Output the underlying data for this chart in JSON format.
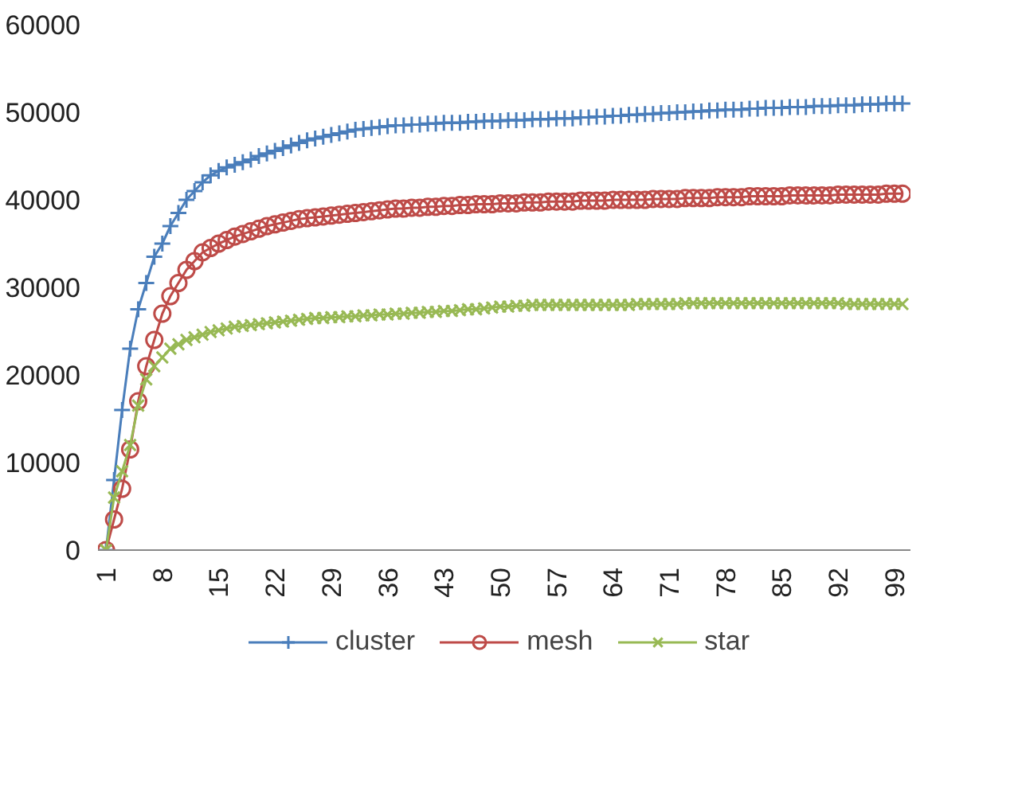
{
  "chart_data": {
    "type": "line",
    "x": [
      1,
      2,
      3,
      4,
      5,
      6,
      7,
      8,
      9,
      10,
      11,
      12,
      13,
      14,
      15,
      16,
      17,
      18,
      19,
      20,
      21,
      22,
      23,
      24,
      25,
      26,
      27,
      28,
      29,
      30,
      31,
      32,
      33,
      34,
      35,
      36,
      37,
      38,
      39,
      40,
      41,
      42,
      43,
      44,
      45,
      46,
      47,
      48,
      49,
      50,
      51,
      52,
      53,
      54,
      55,
      56,
      57,
      58,
      59,
      60,
      61,
      62,
      63,
      64,
      65,
      66,
      67,
      68,
      69,
      70,
      71,
      72,
      73,
      74,
      75,
      76,
      77,
      78,
      79,
      80,
      81,
      82,
      83,
      84,
      85,
      86,
      87,
      88,
      89,
      90,
      91,
      92,
      93,
      94,
      95,
      96,
      97,
      98,
      99,
      100
    ],
    "xlim": [
      0,
      101
    ],
    "xticks": [
      1,
      8,
      15,
      22,
      29,
      36,
      43,
      50,
      57,
      64,
      71,
      78,
      85,
      92,
      99
    ],
    "ylim": [
      0,
      60000
    ],
    "yticks": [
      0,
      10000,
      20000,
      30000,
      40000,
      50000,
      60000
    ],
    "grid": false,
    "legend": "bottom",
    "series": [
      {
        "name": "cluster",
        "color": "#4a7ebb",
        "marker": "cross",
        "values": [
          0,
          8000,
          16000,
          23000,
          27500,
          30500,
          33500,
          35000,
          37000,
          38500,
          40000,
          41000,
          42000,
          42800,
          43300,
          43700,
          44000,
          44300,
          44600,
          45000,
          45300,
          45600,
          45900,
          46200,
          46500,
          46800,
          47000,
          47200,
          47400,
          47600,
          47800,
          48000,
          48100,
          48200,
          48300,
          48400,
          48500,
          48500,
          48600,
          48600,
          48700,
          48700,
          48800,
          48800,
          48800,
          48900,
          48900,
          49000,
          49000,
          49000,
          49100,
          49100,
          49100,
          49200,
          49200,
          49200,
          49300,
          49300,
          49300,
          49400,
          49400,
          49500,
          49500,
          49600,
          49600,
          49700,
          49700,
          49800,
          49800,
          49900,
          49900,
          50000,
          50000,
          50100,
          50100,
          50200,
          50200,
          50300,
          50300,
          50300,
          50400,
          50400,
          50500,
          50500,
          50500,
          50600,
          50600,
          50600,
          50700,
          50700,
          50700,
          50800,
          50800,
          50800,
          50900,
          50900,
          50900,
          51000,
          51000,
          51000
        ]
      },
      {
        "name": "mesh",
        "color": "#be4b48",
        "marker": "circle",
        "values": [
          0,
          3500,
          7000,
          11500,
          17000,
          21000,
          24000,
          27000,
          29000,
          30500,
          32000,
          33000,
          34000,
          34500,
          35000,
          35400,
          35800,
          36100,
          36400,
          36700,
          37000,
          37200,
          37400,
          37600,
          37800,
          37900,
          38000,
          38100,
          38200,
          38300,
          38400,
          38500,
          38600,
          38700,
          38800,
          38900,
          39000,
          39000,
          39100,
          39100,
          39200,
          39200,
          39300,
          39300,
          39400,
          39400,
          39500,
          39500,
          39500,
          39600,
          39600,
          39600,
          39700,
          39700,
          39700,
          39800,
          39800,
          39800,
          39800,
          39900,
          39900,
          39900,
          39900,
          40000,
          40000,
          40000,
          40000,
          40000,
          40100,
          40100,
          40100,
          40100,
          40200,
          40200,
          40200,
          40200,
          40300,
          40300,
          40300,
          40300,
          40400,
          40400,
          40400,
          40400,
          40400,
          40500,
          40500,
          40500,
          40500,
          40500,
          40500,
          40600,
          40600,
          40600,
          40600,
          40600,
          40600,
          40700,
          40700,
          40700
        ]
      },
      {
        "name": "star",
        "color": "#98b954",
        "marker": "x",
        "values": [
          0,
          6000,
          9000,
          12000,
          16500,
          19500,
          21000,
          22000,
          23000,
          23500,
          24000,
          24300,
          24600,
          24900,
          25100,
          25300,
          25500,
          25600,
          25700,
          25800,
          25900,
          26000,
          26100,
          26200,
          26300,
          26400,
          26500,
          26500,
          26600,
          26600,
          26700,
          26700,
          26800,
          26800,
          26900,
          26900,
          27000,
          27000,
          27100,
          27100,
          27200,
          27200,
          27300,
          27300,
          27400,
          27500,
          27500,
          27600,
          27700,
          27800,
          27800,
          27900,
          27900,
          28000,
          28000,
          28000,
          28000,
          28000,
          28000,
          28000,
          28000,
          28000,
          28000,
          28000,
          28000,
          28000,
          28100,
          28100,
          28100,
          28100,
          28100,
          28100,
          28200,
          28200,
          28200,
          28200,
          28200,
          28200,
          28200,
          28200,
          28200,
          28200,
          28200,
          28200,
          28200,
          28200,
          28200,
          28200,
          28200,
          28200,
          28200,
          28200,
          28100,
          28100,
          28100,
          28100,
          28100,
          28100,
          28100,
          28100
        ]
      }
    ]
  }
}
